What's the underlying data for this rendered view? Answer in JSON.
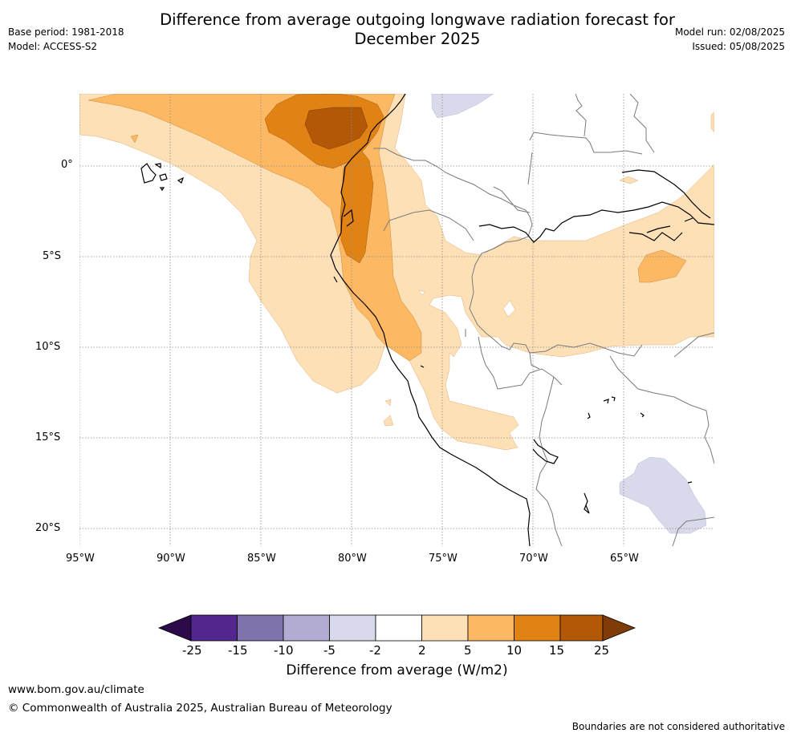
{
  "header": {
    "title_line1": "Difference from average outgoing longwave radiation forecast for",
    "title_line2": "December 2025",
    "base_period": "Base period: 1981-2018",
    "model": "Model: ACCESS-S2",
    "model_run": "Model run: 02/08/2025",
    "issued": "Issued: 05/08/2025"
  },
  "map": {
    "longitude_labels": [
      "95°W",
      "90°W",
      "85°W",
      "80°W",
      "75°W",
      "70°W",
      "65°W"
    ],
    "latitude_labels": [
      "0°",
      "5°S",
      "10°S",
      "15°S",
      "20°S"
    ]
  },
  "colorbar": {
    "title": "Difference from average (W/m2)",
    "tick_labels": [
      "-25",
      "-15",
      "-10",
      "-5",
      "-2",
      "2",
      "5",
      "10",
      "15",
      "25"
    ],
    "colors": {
      "below_min": "#2d0a4a",
      "neg_25_15": "#54278f",
      "neg_15_10": "#8073ac",
      "neg_10_5": "#b2abd2",
      "neg_5_2": "#d8daeb",
      "neutral": "#ffffff",
      "pos_2_5": "#fee0b6",
      "pos_5_10": "#fdb863",
      "pos_10_15": "#e08214",
      "pos_15_25": "#b35806",
      "above_max": "#7f3b08"
    }
  },
  "footer": {
    "url": "www.bom.gov.au/climate",
    "copyright": "© Commonwealth of Australia 2025, Australian Bureau of Meteorology",
    "disclaimer": "Boundaries are not considered authoritative"
  }
}
